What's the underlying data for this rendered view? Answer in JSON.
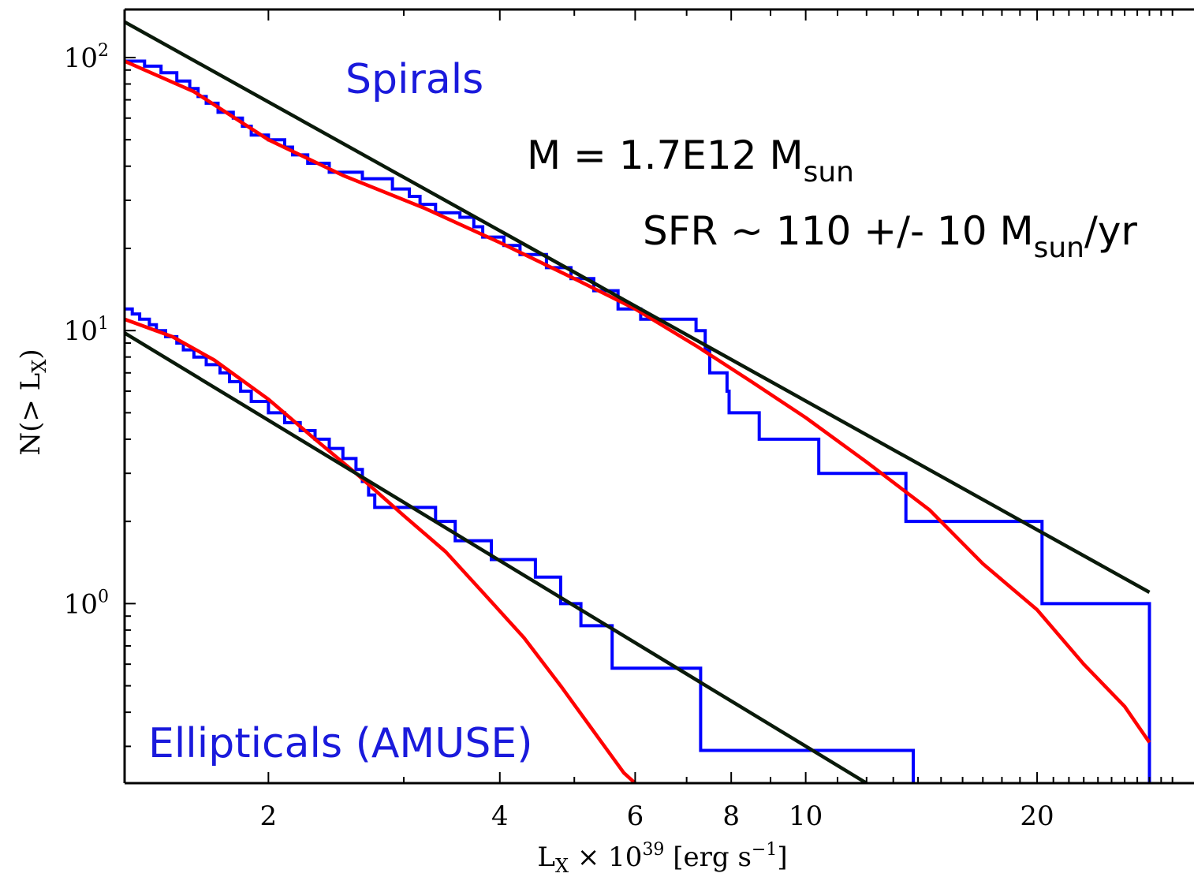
{
  "chart_data": {
    "type": "line",
    "x_scale": "log",
    "y_scale": "log",
    "xlim": [
      1.3,
      32
    ],
    "ylim": [
      0.22,
      150
    ],
    "grid": false,
    "xlabel_main": "L",
    "xlabel_sub": "X",
    "xlabel_rest": " × 10",
    "xlabel_sup": "39",
    "xlabel_units": " [erg s",
    "xlabel_units_sup": "−1",
    "xlabel_close": "]",
    "ylabel": "N(> L",
    "ylabel_sub": "X",
    "ylabel_close": ")",
    "x_ticks": [
      {
        "value": 2,
        "label": "2"
      },
      {
        "value": 4,
        "label": "4"
      },
      {
        "value": 6,
        "label": "6"
      },
      {
        "value": 8,
        "label": "8"
      },
      {
        "value": 10,
        "label": "10"
      },
      {
        "value": 20,
        "label": "20"
      }
    ],
    "y_ticks": [
      {
        "value": 1,
        "base": "10",
        "exp": "0"
      },
      {
        "value": 10,
        "base": "10",
        "exp": "1"
      },
      {
        "value": 100,
        "base": "10",
        "exp": "2"
      }
    ],
    "annotations": {
      "spirals": "Spirals",
      "ellipticals": "Ellipticals (AMUSE)",
      "mass_prefix": "M = 1.7E12 M",
      "mass_sub": "sun",
      "sfr_prefix": "SFR ~ 110 +/- 10 M",
      "sfr_sub": "sun",
      "sfr_suffix": "/yr"
    },
    "colors": {
      "histogram": "#0000ff",
      "fit_curve": "#ff0000",
      "power_law": "#0a1a0a",
      "annotation_blue": "#1a1adc"
    },
    "series": [
      {
        "role": "spirals-histogram",
        "color": "#0000ff",
        "step": true,
        "points": [
          [
            1.3,
            97
          ],
          [
            1.38,
            93
          ],
          [
            1.45,
            88
          ],
          [
            1.52,
            82
          ],
          [
            1.58,
            77
          ],
          [
            1.62,
            72
          ],
          [
            1.66,
            68
          ],
          [
            1.72,
            63
          ],
          [
            1.8,
            60
          ],
          [
            1.85,
            56
          ],
          [
            1.9,
            52
          ],
          [
            2.0,
            50
          ],
          [
            2.1,
            47
          ],
          [
            2.15,
            44
          ],
          [
            2.25,
            41
          ],
          [
            2.4,
            38
          ],
          [
            2.65,
            36
          ],
          [
            2.9,
            33
          ],
          [
            3.05,
            31
          ],
          [
            3.15,
            29
          ],
          [
            3.3,
            27
          ],
          [
            3.55,
            26
          ],
          [
            3.7,
            24
          ],
          [
            3.8,
            22
          ],
          [
            4.05,
            20.5
          ],
          [
            4.25,
            19
          ],
          [
            4.6,
            17
          ],
          [
            4.95,
            15.5
          ],
          [
            5.3,
            14
          ],
          [
            5.7,
            12
          ],
          [
            6.1,
            11
          ],
          [
            7.2,
            10
          ],
          [
            7.4,
            8.5
          ],
          [
            7.5,
            7
          ],
          [
            7.9,
            6
          ],
          [
            7.95,
            5
          ],
          [
            8.7,
            4
          ],
          [
            10.4,
            3
          ],
          [
            13.5,
            2
          ],
          [
            20.3,
            1
          ],
          [
            28,
            0.22
          ]
        ]
      },
      {
        "role": "ellipticals-histogram",
        "color": "#0000ff",
        "step": true,
        "points": [
          [
            1.3,
            12
          ],
          [
            1.33,
            11.5
          ],
          [
            1.36,
            11
          ],
          [
            1.4,
            10.5
          ],
          [
            1.43,
            10
          ],
          [
            1.47,
            9.5
          ],
          [
            1.52,
            9
          ],
          [
            1.55,
            8.5
          ],
          [
            1.6,
            8
          ],
          [
            1.66,
            7.5
          ],
          [
            1.73,
            7
          ],
          [
            1.78,
            6.5
          ],
          [
            1.84,
            6
          ],
          [
            1.9,
            5.5
          ],
          [
            2.0,
            5
          ],
          [
            2.1,
            4.6
          ],
          [
            2.2,
            4.3
          ],
          [
            2.3,
            4.0
          ],
          [
            2.4,
            3.7
          ],
          [
            2.5,
            3.4
          ],
          [
            2.6,
            3.1
          ],
          [
            2.65,
            2.8
          ],
          [
            2.7,
            2.5
          ],
          [
            2.75,
            2.25
          ],
          [
            3.3,
            2.0
          ],
          [
            3.5,
            1.7
          ],
          [
            3.9,
            1.45
          ],
          [
            4.45,
            1.25
          ],
          [
            4.8,
            1.0
          ],
          [
            5.1,
            0.83
          ],
          [
            5.6,
            0.58
          ],
          [
            7.3,
            0.29
          ],
          [
            13.8,
            0.22
          ]
        ]
      },
      {
        "role": "spirals-fit",
        "color": "#ff0000",
        "points": [
          [
            1.3,
            97
          ],
          [
            1.6,
            75
          ],
          [
            2.0,
            50
          ],
          [
            2.5,
            37
          ],
          [
            3.2,
            28
          ],
          [
            4.0,
            21
          ],
          [
            5.0,
            15.5
          ],
          [
            6.0,
            12
          ],
          [
            7.2,
            8.8
          ],
          [
            8.5,
            6.5
          ],
          [
            10.0,
            4.8
          ],
          [
            12.0,
            3.3
          ],
          [
            14.5,
            2.2
          ],
          [
            17.0,
            1.4
          ],
          [
            20.0,
            0.95
          ],
          [
            23.0,
            0.6
          ],
          [
            26.0,
            0.42
          ],
          [
            28.0,
            0.31
          ]
        ]
      },
      {
        "role": "ellipticals-fit",
        "color": "#ff0000",
        "points": [
          [
            1.3,
            11
          ],
          [
            1.5,
            9.5
          ],
          [
            1.7,
            7.8
          ],
          [
            2.0,
            5.6
          ],
          [
            2.3,
            4.0
          ],
          [
            2.6,
            3.0
          ],
          [
            3.0,
            2.1
          ],
          [
            3.4,
            1.55
          ],
          [
            3.8,
            1.1
          ],
          [
            4.3,
            0.75
          ],
          [
            4.8,
            0.5
          ],
          [
            5.3,
            0.34
          ],
          [
            5.8,
            0.24
          ],
          [
            6.0,
            0.22
          ]
        ]
      },
      {
        "role": "spirals-power-law",
        "color": "#0a1a0a",
        "points": [
          [
            1.3,
            135
          ],
          [
            28,
            1.1
          ]
        ]
      },
      {
        "role": "ellipticals-power-law",
        "color": "#0a1a0a",
        "points": [
          [
            1.3,
            9.8
          ],
          [
            12,
            0.22
          ]
        ]
      }
    ]
  }
}
